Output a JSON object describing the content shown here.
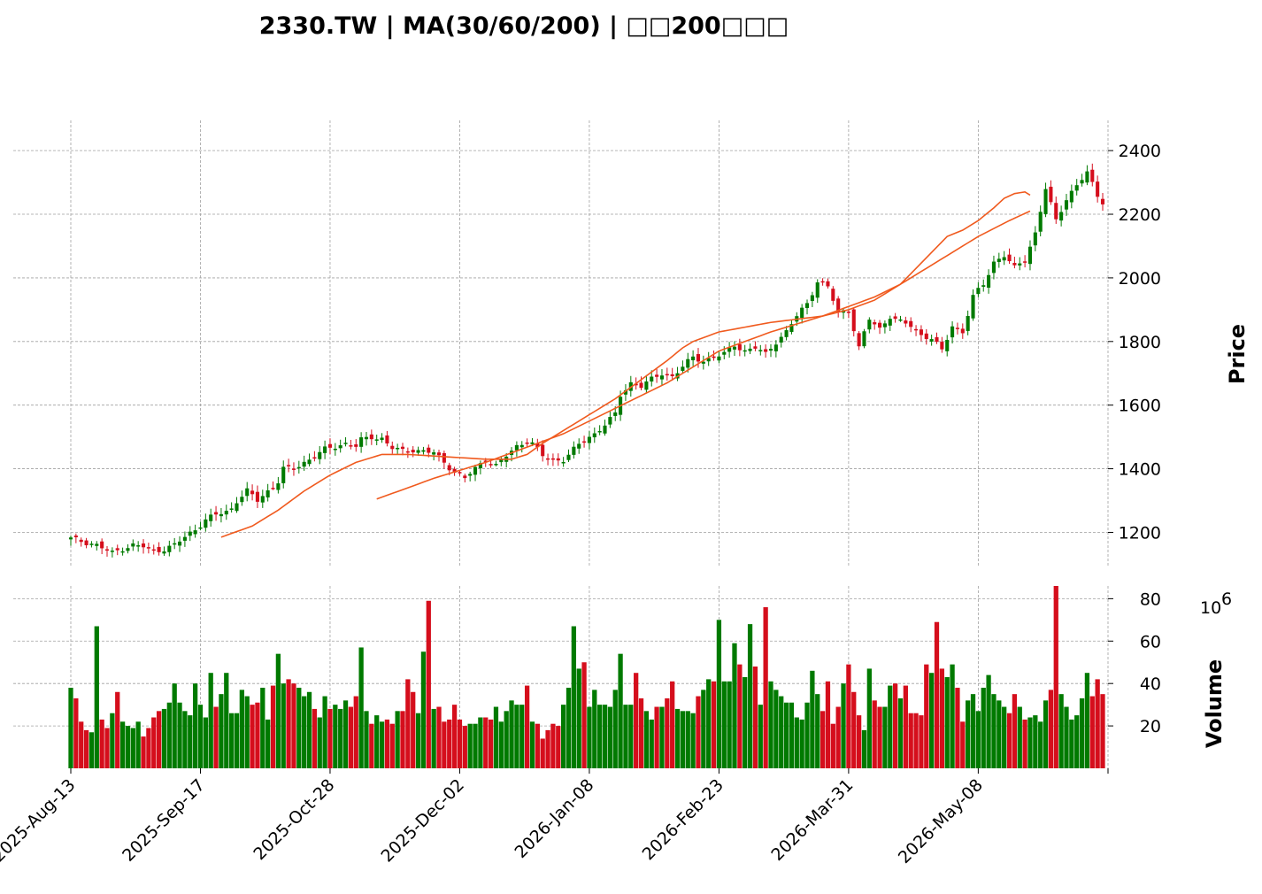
{
  "chart_data": {
    "type": "candlestick",
    "title": "2330.TW  |  MA(30/60/200)  |  □□200□□□",
    "ylabel": "Price",
    "volume_label": "Volume",
    "volume_exponent": "6",
    "ylim": [
      1090,
      2495
    ],
    "volume_ylim": [
      0,
      86
    ],
    "yticks": [
      1200,
      1400,
      1600,
      1800,
      2000,
      2200,
      2400
    ],
    "volume_yticks": [
      20,
      40,
      60,
      80
    ],
    "xticks": [
      {
        "index": 0,
        "label": "2025-Aug-13"
      },
      {
        "index": 25,
        "label": "2025-Sep-17"
      },
      {
        "index": 50,
        "label": "2025-Oct-28"
      },
      {
        "index": 75,
        "label": "2025-Dec-02"
      },
      {
        "index": 100,
        "label": "2026-Jan-08"
      },
      {
        "index": 125,
        "label": "2026-Feb-23"
      },
      {
        "index": 150,
        "label": "2026-Mar-31"
      },
      {
        "index": 175,
        "label": "2026-May-08"
      }
    ],
    "n_bars": 200,
    "colors": {
      "up": "#007a00",
      "down": "#d50e1c",
      "ma": "#f05a1e",
      "grid": "#a0a0a0"
    },
    "closes_anchor": [
      [
        0,
        1180
      ],
      [
        4,
        1165
      ],
      [
        5,
        1160
      ],
      [
        8,
        1135
      ],
      [
        10,
        1150
      ],
      [
        12,
        1160
      ],
      [
        14,
        1155
      ],
      [
        16,
        1142
      ],
      [
        18,
        1148
      ],
      [
        20,
        1160
      ],
      [
        22,
        1185
      ],
      [
        24,
        1210
      ],
      [
        26,
        1240
      ],
      [
        28,
        1255
      ],
      [
        30,
        1265
      ],
      [
        31,
        1275
      ],
      [
        32,
        1300
      ],
      [
        34,
        1330
      ],
      [
        36,
        1300
      ],
      [
        38,
        1330
      ],
      [
        40,
        1360
      ],
      [
        41,
        1400
      ],
      [
        43,
        1400
      ],
      [
        45,
        1420
      ],
      [
        47,
        1440
      ],
      [
        49,
        1460
      ],
      [
        51,
        1470
      ],
      [
        53,
        1480
      ],
      [
        55,
        1470
      ],
      [
        56,
        1490
      ],
      [
        58,
        1500
      ],
      [
        60,
        1495
      ],
      [
        62,
        1465
      ],
      [
        64,
        1455
      ],
      [
        66,
        1460
      ],
      [
        68,
        1455
      ],
      [
        70,
        1450
      ],
      [
        72,
        1420
      ],
      [
        74,
        1390
      ],
      [
        75,
        1380
      ],
      [
        76,
        1370
      ],
      [
        78,
        1400
      ],
      [
        80,
        1430
      ],
      [
        82,
        1410
      ],
      [
        84,
        1440
      ],
      [
        86,
        1470
      ],
      [
        88,
        1490
      ],
      [
        89,
        1480
      ],
      [
        91,
        1440
      ],
      [
        93,
        1425
      ],
      [
        95,
        1430
      ],
      [
        97,
        1460
      ],
      [
        99,
        1490
      ],
      [
        101,
        1510
      ],
      [
        103,
        1540
      ],
      [
        105,
        1570
      ],
      [
        106,
        1630
      ],
      [
        108,
        1670
      ],
      [
        110,
        1660
      ],
      [
        112,
        1680
      ],
      [
        114,
        1700
      ],
      [
        116,
        1690
      ],
      [
        118,
        1720
      ],
      [
        120,
        1750
      ],
      [
        122,
        1740
      ],
      [
        124,
        1750
      ],
      [
        126,
        1760
      ],
      [
        128,
        1790
      ],
      [
        130,
        1770
      ],
      [
        132,
        1780
      ],
      [
        134,
        1760
      ],
      [
        136,
        1800
      ],
      [
        138,
        1830
      ],
      [
        140,
        1880
      ],
      [
        142,
        1920
      ],
      [
        144,
        1990
      ],
      [
        146,
        1970
      ],
      [
        148,
        1890
      ],
      [
        150,
        1900
      ],
      [
        152,
        1780
      ],
      [
        154,
        1870
      ],
      [
        156,
        1840
      ],
      [
        158,
        1880
      ],
      [
        160,
        1860
      ],
      [
        162,
        1850
      ],
      [
        164,
        1820
      ],
      [
        166,
        1810
      ],
      [
        168,
        1770
      ],
      [
        170,
        1850
      ],
      [
        172,
        1830
      ],
      [
        174,
        1940
      ],
      [
        176,
        1980
      ],
      [
        178,
        2050
      ],
      [
        180,
        2070
      ],
      [
        182,
        2030
      ],
      [
        184,
        2060
      ],
      [
        186,
        2140
      ],
      [
        188,
        2280
      ],
      [
        190,
        2180
      ],
      [
        192,
        2250
      ],
      [
        194,
        2290
      ],
      [
        196,
        2330
      ],
      [
        198,
        2260
      ],
      [
        199,
        2240
      ]
    ],
    "ma30_anchor": [
      [
        29,
        1185
      ],
      [
        35,
        1220
      ],
      [
        40,
        1270
      ],
      [
        45,
        1330
      ],
      [
        50,
        1380
      ],
      [
        55,
        1420
      ],
      [
        60,
        1445
      ],
      [
        65,
        1445
      ],
      [
        70,
        1440
      ],
      [
        75,
        1435
      ],
      [
        80,
        1430
      ],
      [
        85,
        1430
      ],
      [
        88,
        1445
      ],
      [
        91,
        1480
      ],
      [
        95,
        1520
      ],
      [
        100,
        1570
      ],
      [
        105,
        1620
      ],
      [
        110,
        1680
      ],
      [
        115,
        1740
      ],
      [
        118,
        1780
      ],
      [
        120,
        1800
      ],
      [
        125,
        1830
      ],
      [
        130,
        1845
      ],
      [
        135,
        1860
      ],
      [
        140,
        1870
      ],
      [
        145,
        1880
      ],
      [
        150,
        1900
      ],
      [
        155,
        1930
      ],
      [
        160,
        1980
      ],
      [
        163,
        2030
      ],
      [
        166,
        2080
      ],
      [
        169,
        2130
      ],
      [
        172,
        2150
      ],
      [
        175,
        2180
      ],
      [
        178,
        2220
      ],
      [
        180,
        2250
      ],
      [
        182,
        2265
      ],
      [
        184,
        2270
      ],
      [
        185,
        2260
      ]
    ],
    "ma60_anchor": [
      [
        59,
        1305
      ],
      [
        65,
        1340
      ],
      [
        70,
        1370
      ],
      [
        75,
        1395
      ],
      [
        80,
        1420
      ],
      [
        85,
        1450
      ],
      [
        90,
        1480
      ],
      [
        95,
        1510
      ],
      [
        100,
        1550
      ],
      [
        105,
        1590
      ],
      [
        110,
        1630
      ],
      [
        115,
        1670
      ],
      [
        120,
        1720
      ],
      [
        125,
        1770
      ],
      [
        130,
        1800
      ],
      [
        135,
        1830
      ],
      [
        140,
        1855
      ],
      [
        145,
        1880
      ],
      [
        150,
        1910
      ],
      [
        155,
        1940
      ],
      [
        160,
        1980
      ],
      [
        163,
        2010
      ],
      [
        166,
        2040
      ],
      [
        169,
        2070
      ],
      [
        172,
        2100
      ],
      [
        175,
        2130
      ],
      [
        178,
        2155
      ],
      [
        181,
        2180
      ],
      [
        185,
        2210
      ]
    ],
    "volume_anchor": [
      [
        0,
        38
      ],
      [
        1,
        33
      ],
      [
        2,
        22
      ],
      [
        3,
        18
      ],
      [
        4,
        17
      ],
      [
        5,
        67
      ],
      [
        6,
        23
      ],
      [
        7,
        19
      ],
      [
        8,
        26
      ],
      [
        9,
        36
      ],
      [
        10,
        22
      ],
      [
        11,
        20
      ],
      [
        12,
        19
      ],
      [
        13,
        22
      ],
      [
        14,
        15
      ],
      [
        15,
        19
      ],
      [
        16,
        24
      ],
      [
        17,
        27
      ],
      [
        18,
        28
      ],
      [
        19,
        31
      ],
      [
        20,
        40
      ],
      [
        21,
        31
      ],
      [
        22,
        27
      ],
      [
        23,
        25
      ],
      [
        24,
        40
      ],
      [
        25,
        30
      ],
      [
        26,
        24
      ],
      [
        27,
        45
      ],
      [
        28,
        29
      ],
      [
        29,
        35
      ],
      [
        30,
        45
      ],
      [
        31,
        26
      ],
      [
        32,
        26
      ],
      [
        33,
        37
      ],
      [
        34,
        34
      ],
      [
        35,
        30
      ],
      [
        36,
        31
      ],
      [
        37,
        38
      ],
      [
        38,
        23
      ],
      [
        39,
        39
      ],
      [
        40,
        54
      ],
      [
        41,
        40
      ],
      [
        42,
        42
      ],
      [
        43,
        40
      ],
      [
        44,
        38
      ],
      [
        45,
        34
      ],
      [
        46,
        36
      ],
      [
        47,
        28
      ],
      [
        48,
        24
      ],
      [
        49,
        34
      ],
      [
        50,
        28
      ],
      [
        51,
        30
      ],
      [
        52,
        28
      ],
      [
        53,
        32
      ],
      [
        54,
        29
      ],
      [
        55,
        34
      ],
      [
        56,
        57
      ],
      [
        57,
        27
      ],
      [
        58,
        21
      ],
      [
        59,
        25
      ],
      [
        60,
        22
      ],
      [
        61,
        23
      ],
      [
        62,
        21
      ],
      [
        63,
        27
      ],
      [
        64,
        27
      ],
      [
        65,
        42
      ],
      [
        66,
        36
      ],
      [
        67,
        26
      ],
      [
        68,
        55
      ],
      [
        69,
        79
      ],
      [
        70,
        28
      ],
      [
        71,
        29
      ],
      [
        72,
        22
      ],
      [
        73,
        23
      ],
      [
        74,
        30
      ],
      [
        75,
        23
      ],
      [
        76,
        20
      ],
      [
        77,
        21
      ],
      [
        78,
        21
      ],
      [
        79,
        24
      ],
      [
        80,
        24
      ],
      [
        81,
        23
      ],
      [
        82,
        29
      ],
      [
        83,
        22
      ],
      [
        84,
        27
      ],
      [
        85,
        32
      ],
      [
        86,
        30
      ],
      [
        87,
        30
      ],
      [
        88,
        39
      ],
      [
        89,
        22
      ],
      [
        90,
        21
      ],
      [
        91,
        14
      ],
      [
        92,
        18
      ],
      [
        93,
        21
      ],
      [
        94,
        20
      ],
      [
        95,
        30
      ],
      [
        96,
        38
      ],
      [
        97,
        67
      ],
      [
        98,
        47
      ],
      [
        99,
        50
      ],
      [
        100,
        29
      ],
      [
        101,
        37
      ],
      [
        102,
        30
      ],
      [
        103,
        30
      ],
      [
        104,
        29
      ],
      [
        105,
        37
      ],
      [
        106,
        54
      ],
      [
        107,
        30
      ],
      [
        108,
        30
      ],
      [
        109,
        45
      ],
      [
        110,
        33
      ],
      [
        111,
        27
      ],
      [
        112,
        23
      ],
      [
        113,
        29
      ],
      [
        114,
        29
      ],
      [
        115,
        33
      ],
      [
        116,
        41
      ],
      [
        117,
        28
      ],
      [
        118,
        27
      ],
      [
        119,
        27
      ],
      [
        120,
        26
      ],
      [
        121,
        34
      ],
      [
        122,
        37
      ],
      [
        123,
        42
      ],
      [
        124,
        41
      ],
      [
        125,
        70
      ],
      [
        126,
        41
      ],
      [
        127,
        41
      ],
      [
        128,
        59
      ],
      [
        129,
        49
      ],
      [
        130,
        43
      ],
      [
        131,
        68
      ],
      [
        132,
        48
      ],
      [
        133,
        30
      ],
      [
        134,
        76
      ],
      [
        135,
        41
      ],
      [
        136,
        37
      ],
      [
        137,
        34
      ],
      [
        138,
        31
      ],
      [
        139,
        31
      ],
      [
        140,
        24
      ],
      [
        141,
        23
      ],
      [
        142,
        31
      ],
      [
        143,
        46
      ],
      [
        144,
        35
      ],
      [
        145,
        27
      ],
      [
        146,
        41
      ],
      [
        147,
        21
      ],
      [
        148,
        29
      ],
      [
        149,
        40
      ],
      [
        150,
        49
      ],
      [
        151,
        36
      ],
      [
        152,
        25
      ],
      [
        153,
        18
      ],
      [
        154,
        47
      ],
      [
        155,
        32
      ],
      [
        156,
        29
      ],
      [
        157,
        29
      ],
      [
        158,
        39
      ],
      [
        159,
        40
      ],
      [
        160,
        33
      ],
      [
        161,
        39
      ],
      [
        162,
        26
      ],
      [
        163,
        26
      ],
      [
        164,
        25
      ],
      [
        165,
        49
      ],
      [
        166,
        45
      ],
      [
        167,
        69
      ],
      [
        168,
        47
      ],
      [
        169,
        43
      ],
      [
        170,
        49
      ],
      [
        171,
        38
      ],
      [
        172,
        22
      ],
      [
        173,
        32
      ],
      [
        174,
        35
      ],
      [
        175,
        27
      ],
      [
        176,
        38
      ],
      [
        177,
        44
      ],
      [
        178,
        35
      ],
      [
        179,
        32
      ],
      [
        180,
        29
      ],
      [
        181,
        26
      ],
      [
        182,
        35
      ],
      [
        183,
        29
      ],
      [
        184,
        23
      ],
      [
        185,
        24
      ],
      [
        186,
        25
      ],
      [
        187,
        22
      ],
      [
        188,
        32
      ],
      [
        189,
        37
      ],
      [
        190,
        86
      ],
      [
        191,
        35
      ],
      [
        192,
        29
      ],
      [
        193,
        23
      ],
      [
        194,
        25
      ],
      [
        195,
        33
      ],
      [
        196,
        45
      ],
      [
        197,
        34
      ],
      [
        198,
        42
      ],
      [
        199,
        35
      ]
    ]
  }
}
